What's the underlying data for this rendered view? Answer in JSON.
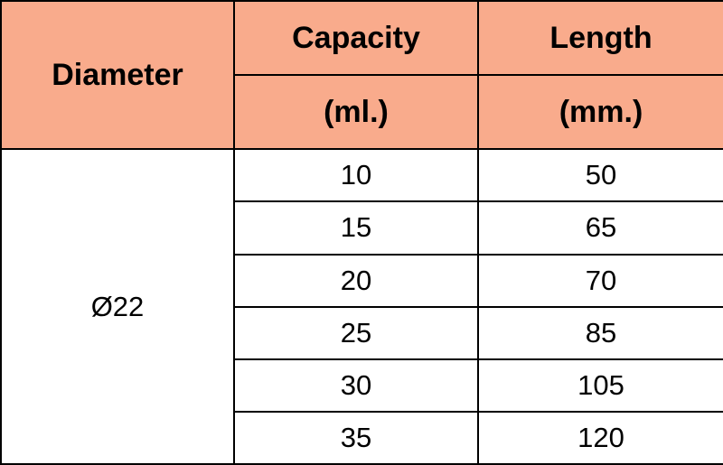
{
  "table": {
    "header": {
      "diameter": "Diameter",
      "capacity": [
        "Capacity",
        "(ml.)"
      ],
      "length": [
        "Length",
        "(mm.)"
      ]
    },
    "diameter": "Ø22",
    "rows": [
      [
        10,
        50
      ],
      [
        15,
        65
      ],
      [
        20,
        70
      ],
      [
        25,
        85
      ],
      [
        30,
        105
      ],
      [
        35,
        120
      ]
    ]
  }
}
